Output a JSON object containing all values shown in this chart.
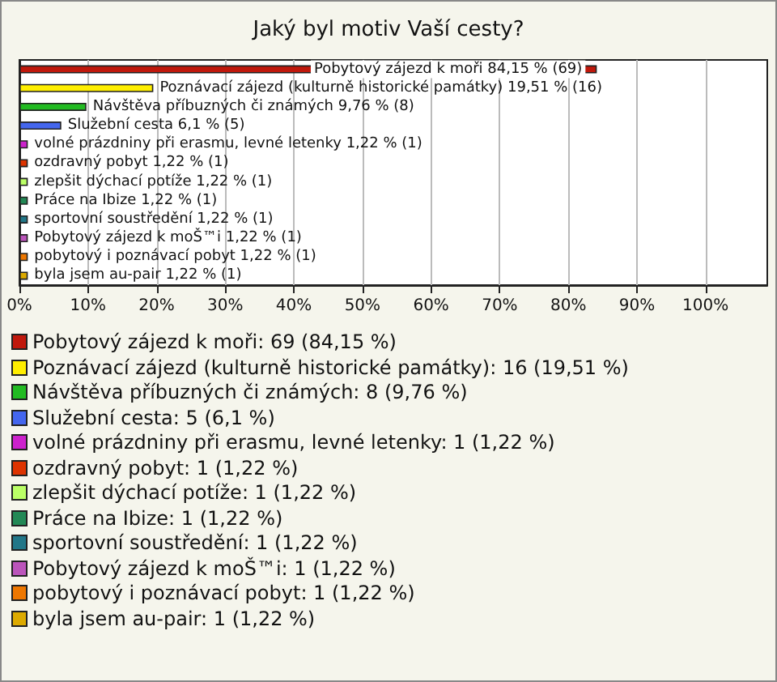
{
  "chart_data": {
    "type": "bar",
    "orientation": "horizontal",
    "title": "Jaký byl motiv Vaší cesty?",
    "categories": [
      "Pobytový zájezd k moři",
      "Poznávací zájezd (kulturně historické památky)",
      "Návštěva příbuzných či známých",
      "Služební cesta",
      "volné prázdniny při erasmu, levné letenky",
      "ozdravný pobyt",
      "zlepšit dýchací potíže",
      "Práce na Ibize",
      "sportovní soustředění",
      "Pobytový zájezd k moŠ™i",
      "pobytový i poznávací pobyt",
      "byla jsem au-pair"
    ],
    "values": [
      84.15,
      19.51,
      9.76,
      6.1,
      1.22,
      1.22,
      1.22,
      1.22,
      1.22,
      1.22,
      1.22,
      1.22
    ],
    "colors": [
      "#c0180c",
      "#ffee00",
      "#22bb22",
      "#4466ee",
      "#cc22cc",
      "#dd3300",
      "#bbff66",
      "#228855",
      "#227788",
      "#bb55bb",
      "#ee7700",
      "#ddaa00"
    ],
    "value_labels": [
      "84,15 % (69)",
      "19,51 % (16)",
      "9,76 % (8)",
      "6,1 % (5)",
      "1,22 % (1)",
      "1,22 % (1)",
      "1,22 % (1)",
      "1,22 % (1)",
      "1,22 % (1)",
      "1,22 % (1)",
      "1,22 % (1)",
      "1,22 % (1)"
    ],
    "xlim": [
      0,
      109
    ],
    "xticks": [
      {
        "value": 0,
        "label": "0%"
      },
      {
        "value": 10,
        "label": "10%"
      },
      {
        "value": 20,
        "label": "20%"
      },
      {
        "value": 30,
        "label": "30%"
      },
      {
        "value": 40,
        "label": "40%"
      },
      {
        "value": 50,
        "label": "50%"
      },
      {
        "value": 60,
        "label": "60%"
      },
      {
        "value": 70,
        "label": "70%"
      },
      {
        "value": 80,
        "label": "80%"
      },
      {
        "value": 90,
        "label": "90%"
      },
      {
        "value": 100,
        "label": "100%"
      }
    ],
    "grid": "x",
    "tick_labels": "x",
    "annotations": [
      "Pobytový zájezd k moři: 69 (84,15 %)",
      "Poznávací zájezd (kulturně historické památky): 16 (19,51 %)",
      "Návštěva příbuzných či známých: 8 (9,76 %)",
      "Služební cesta: 5 (6,1 %)",
      "volné prázdniny při erasmu, levné letenky: 1 (1,22 %)",
      "ozdravný pobyt: 1 (1,22 %)",
      "zlepšit dýchací potíže: 1 (1,22 %)",
      "Práce na Ibize: 1 (1,22 %)",
      "sportovní soustředění: 1 (1,22 %)",
      "Pobytový zájezd k moŠ™i: 1 (1,22 %)",
      "pobytový i poznávací pobyt: 1 (1,22 %)",
      "byla jsem au-pair: 1 (1,22 %)"
    ]
  }
}
